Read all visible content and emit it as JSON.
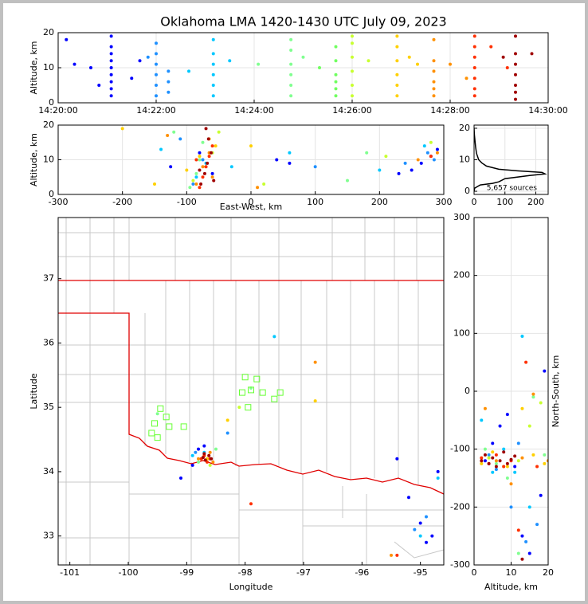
{
  "chart_data": [
    {
      "type": "scatter",
      "title": "Oklahoma LMA 1420-1430 UTC July 09, 2023",
      "ylabel": "Altitude, km",
      "grid": true,
      "xlim": [
        "14:20:00",
        "14:30:00"
      ],
      "xticks": [
        "14:20:00",
        "14:22:00",
        "14:24:00",
        "14:26:00",
        "14:28:00",
        "14:30:00"
      ],
      "ylim": [
        0,
        20
      ],
      "yticks": [
        0,
        10,
        20
      ],
      "series": [
        {
          "color": "#0000ff",
          "x": [
            "14:21:05",
            "14:21:05",
            "14:21:05",
            "14:21:05",
            "14:21:05",
            "14:21:05",
            "14:21:05",
            "14:21:05",
            "14:21:05",
            "14:20:10",
            "14:20:20",
            "14:20:40",
            "14:20:50",
            "14:21:40",
            "14:21:30"
          ],
          "y": [
            2,
            4,
            6,
            8,
            10,
            12,
            14,
            16,
            19,
            18,
            11,
            10,
            5,
            12,
            7
          ]
        },
        {
          "color": "#1e90ff",
          "x": [
            "14:22:00",
            "14:22:00",
            "14:22:00",
            "14:22:00",
            "14:22:00",
            "14:22:00",
            "14:22:15",
            "14:22:15",
            "14:22:15",
            "14:21:50"
          ],
          "y": [
            2,
            5,
            8,
            11,
            14,
            17,
            3,
            6,
            9,
            13
          ]
        },
        {
          "color": "#00c8ff",
          "x": [
            "14:23:10",
            "14:23:10",
            "14:23:10",
            "14:23:10",
            "14:23:10",
            "14:23:10",
            "14:23:30",
            "14:22:40"
          ],
          "y": [
            2,
            5,
            8,
            11,
            14,
            18,
            12,
            9
          ]
        },
        {
          "color": "#80ff90",
          "x": [
            "14:24:45",
            "14:24:45",
            "14:24:45",
            "14:24:45",
            "14:24:45",
            "14:24:45",
            "14:24:05",
            "14:25:00"
          ],
          "y": [
            2,
            5,
            8,
            11,
            15,
            18,
            11,
            13
          ]
        },
        {
          "color": "#70ff60",
          "x": [
            "14:25:40",
            "14:25:40",
            "14:25:40",
            "14:25:40",
            "14:25:40",
            "14:25:40",
            "14:25:20"
          ],
          "y": [
            2,
            4,
            6,
            8,
            12,
            16,
            10
          ]
        },
        {
          "color": "#c8ff30",
          "x": [
            "14:26:00",
            "14:26:00",
            "14:26:00",
            "14:26:00",
            "14:26:00",
            "14:26:00",
            "14:26:20"
          ],
          "y": [
            2,
            5,
            9,
            13,
            17,
            19,
            12
          ]
        },
        {
          "color": "#ffd000",
          "x": [
            "14:26:55",
            "14:26:55",
            "14:26:55",
            "14:26:55",
            "14:26:55",
            "14:26:55",
            "14:27:20",
            "14:27:10"
          ],
          "y": [
            2,
            5,
            8,
            12,
            16,
            19,
            11,
            13
          ]
        },
        {
          "color": "#ff9000",
          "x": [
            "14:27:40",
            "14:27:40",
            "14:27:40",
            "14:27:40",
            "14:27:40",
            "14:27:40",
            "14:28:00",
            "14:28:20"
          ],
          "y": [
            2,
            4,
            6,
            9,
            12,
            18,
            11,
            7
          ]
        },
        {
          "color": "#ff3000",
          "x": [
            "14:28:30",
            "14:28:30",
            "14:28:30",
            "14:28:30",
            "14:28:30",
            "14:28:30",
            "14:28:30",
            "14:28:50",
            "14:29:10"
          ],
          "y": [
            2,
            4,
            7,
            10,
            13,
            16,
            19,
            16,
            10
          ]
        },
        {
          "color": "#a00000",
          "x": [
            "14:29:20",
            "14:29:20",
            "14:29:20",
            "14:29:20",
            "14:29:20",
            "14:29:20",
            "14:29:20",
            "14:29:40",
            "14:29:05"
          ],
          "y": [
            1,
            3,
            5,
            8,
            11,
            14,
            19,
            14,
            13
          ]
        }
      ]
    },
    {
      "type": "scatter",
      "xlabel": "East-West, km",
      "ylabel": "Altitude, km",
      "grid": true,
      "xlim": [
        -300,
        300
      ],
      "xticks": [
        -300,
        -200,
        -100,
        0,
        100,
        200,
        300
      ],
      "ylim": [
        0,
        20
      ],
      "yticks": [
        0,
        10,
        20
      ],
      "series": [
        {
          "color": "#0000ff",
          "x": [
            -125,
            -80,
            -60,
            40,
            60,
            250,
            265,
            280,
            290,
            230
          ],
          "y": [
            8,
            12,
            6,
            10,
            9,
            7,
            9,
            11,
            13,
            6
          ]
        },
        {
          "color": "#1e90ff",
          "x": [
            -110,
            -90,
            -75,
            100,
            240,
            275,
            285
          ],
          "y": [
            16,
            3,
            10,
            8,
            9,
            12,
            10
          ]
        },
        {
          "color": "#00c8ff",
          "x": [
            -140,
            -85,
            -70,
            60,
            200,
            270,
            -30
          ],
          "y": [
            13,
            5,
            9,
            12,
            7,
            14,
            8
          ]
        },
        {
          "color": "#80ff90",
          "x": [
            -95,
            -85,
            -80,
            -75,
            150,
            180,
            -120
          ],
          "y": [
            2,
            6,
            10,
            15,
            4,
            12,
            18
          ]
        },
        {
          "color": "#c8ff30",
          "x": [
            -90,
            -70,
            -60,
            -50,
            210,
            280,
            20
          ],
          "y": [
            4,
            8,
            12,
            18,
            11,
            15,
            3
          ]
        },
        {
          "color": "#ffd000",
          "x": [
            -150,
            -100,
            -80,
            -65,
            -55,
            0,
            -200
          ],
          "y": [
            3,
            7,
            11,
            16,
            14,
            14,
            19
          ]
        },
        {
          "color": "#ff9000",
          "x": [
            -130,
            -85,
            -75,
            -65,
            -60,
            10,
            260,
            290
          ],
          "y": [
            17,
            3,
            8,
            12,
            5,
            2,
            10,
            12
          ]
        },
        {
          "color": "#ff3000",
          "x": [
            -80,
            -75,
            -70,
            -65,
            -60,
            -85,
            280
          ],
          "y": [
            2,
            5,
            8,
            11,
            14,
            10,
            11
          ]
        },
        {
          "color": "#a00000",
          "x": [
            -78,
            -72,
            -68,
            -62,
            -58,
            -66,
            -70,
            -80
          ],
          "y": [
            3,
            6,
            9,
            12,
            4,
            16,
            19,
            7
          ]
        }
      ]
    },
    {
      "type": "line",
      "annotation": "5,657 sources",
      "grid": true,
      "color": "#000000",
      "xlim": [
        0,
        240
      ],
      "xticks": [
        0,
        100,
        200
      ],
      "ylim": [
        -1,
        21
      ],
      "yticks": [
        0,
        10,
        20
      ],
      "x": [
        0,
        2,
        20,
        60,
        80,
        100,
        180,
        230,
        220,
        140,
        80,
        40,
        25,
        15,
        8,
        5,
        3,
        1,
        0
      ],
      "y": [
        0,
        1,
        2,
        2.5,
        3,
        4,
        5,
        5.5,
        6,
        6.5,
        7,
        8,
        9,
        10,
        12,
        14,
        16,
        18,
        20
      ]
    },
    {
      "type": "scatter",
      "xlabel": "Longitude",
      "ylabel": "Latitude",
      "grid": false,
      "xlim": [
        -101.2,
        -94.6
      ],
      "xticks": [
        -101,
        -100,
        -99,
        -98,
        -97,
        -96,
        -95
      ],
      "ylim": [
        32.55,
        37.95
      ],
      "yticks": [
        33,
        34,
        35,
        36,
        37
      ],
      "series": [
        {
          "color": "#0000ff",
          "x": [
            -98.8,
            -98.9,
            -99.1,
            -98.7,
            -95.0,
            -94.8,
            -94.9,
            -95.2,
            -94.7,
            -95.4
          ],
          "y": [
            34.35,
            34.1,
            33.9,
            34.4,
            33.2,
            33.0,
            32.9,
            33.6,
            34.0,
            34.2
          ]
        },
        {
          "color": "#1e90ff",
          "x": [
            -98.85,
            -98.6,
            -94.9,
            -95.1,
            -98.3
          ],
          "y": [
            34.3,
            34.2,
            33.3,
            33.1,
            34.6
          ]
        },
        {
          "color": "#00c8ff",
          "x": [
            -98.9,
            -98.7,
            -97.5,
            -95.0,
            -94.7
          ],
          "y": [
            34.25,
            34.3,
            36.1,
            33.0,
            33.9
          ]
        },
        {
          "color": "#80ff90",
          "x": [
            -98.8,
            -98.5,
            -97.9,
            -99.5
          ],
          "y": [
            34.15,
            34.35,
            35.3,
            34.9
          ]
        },
        {
          "color": "#c8ff30",
          "x": [
            -98.75,
            -98.6,
            -98.1
          ],
          "y": [
            34.2,
            34.1,
            35.0
          ]
        },
        {
          "color": "#ffd000",
          "x": [
            -98.7,
            -98.65,
            -98.3,
            -96.8
          ],
          "y": [
            34.25,
            34.2,
            34.8,
            35.1
          ]
        },
        {
          "color": "#ff9000",
          "x": [
            -98.8,
            -98.6,
            -98.55,
            -96.8,
            -95.5
          ],
          "y": [
            34.2,
            34.3,
            34.15,
            35.7,
            32.7
          ]
        },
        {
          "color": "#ff3000",
          "x": [
            -98.75,
            -98.7,
            -98.6,
            -98.65,
            -95.4,
            -97.9
          ],
          "y": [
            34.2,
            34.25,
            34.2,
            34.15,
            32.7,
            33.5
          ]
        },
        {
          "color": "#a00000",
          "x": [
            -98.72,
            -98.68,
            -98.62,
            -98.58,
            -98.7
          ],
          "y": [
            34.22,
            34.18,
            34.25,
            34.2,
            34.28
          ]
        },
        {
          "color": "#66ff33",
          "marker": "square",
          "x": [
            -99.55,
            -99.45,
            -99.35,
            -99.6,
            -99.5,
            -99.3,
            -99.05,
            -98.0,
            -97.8,
            -97.9,
            -97.95,
            -98.05,
            -97.7,
            -97.5,
            -97.4
          ],
          "y": [
            34.75,
            34.98,
            34.85,
            34.6,
            34.53,
            34.7,
            34.7,
            35.47,
            35.44,
            35.27,
            35.0,
            35.23,
            35.23,
            35.13,
            35.23
          ]
        }
      ]
    },
    {
      "type": "scatter",
      "xlabel": "Altitude, km",
      "ylabel": "North-South, km",
      "grid": true,
      "xlim": [
        0,
        20
      ],
      "xticks": [
        0,
        10,
        20
      ],
      "ylim": [
        -300,
        300
      ],
      "yticks": [
        -300,
        -200,
        -100,
        0,
        100,
        200,
        300
      ],
      "series": [
        {
          "color": "#0000ff",
          "x": [
            3,
            5,
            7,
            9,
            11,
            13,
            15,
            18,
            19
          ],
          "y": [
            -120,
            -90,
            -60,
            -40,
            -130,
            -250,
            -280,
            -180,
            35
          ]
        },
        {
          "color": "#1e90ff",
          "x": [
            4,
            6,
            10,
            12,
            14,
            17
          ],
          "y": [
            -110,
            -135,
            -200,
            -90,
            -260,
            -230
          ]
        },
        {
          "color": "#00c8ff",
          "x": [
            2,
            5,
            8,
            11,
            13,
            15
          ],
          "y": [
            -50,
            -140,
            -100,
            -140,
            95,
            -200
          ]
        },
        {
          "color": "#80ff90",
          "x": [
            3,
            6,
            9,
            12,
            16,
            19
          ],
          "y": [
            -100,
            -125,
            -150,
            -280,
            -10,
            -110
          ]
        },
        {
          "color": "#c8ff30",
          "x": [
            4,
            8,
            12,
            15,
            18
          ],
          "y": [
            -115,
            -130,
            -120,
            -60,
            -20
          ]
        },
        {
          "color": "#ffd000",
          "x": [
            2,
            5,
            9,
            13,
            16,
            19
          ],
          "y": [
            -125,
            -105,
            -130,
            -30,
            -110,
            -125
          ]
        },
        {
          "color": "#ff9000",
          "x": [
            3,
            6,
            10,
            13,
            16,
            20
          ],
          "y": [
            -30,
            -120,
            -160,
            -115,
            -5,
            -120
          ]
        },
        {
          "color": "#ff3000",
          "x": [
            2,
            4,
            6,
            8,
            10,
            12,
            14,
            17
          ],
          "y": [
            -115,
            -125,
            -110,
            -130,
            -120,
            -240,
            50,
            -130
          ]
        },
        {
          "color": "#a00000",
          "x": [
            2,
            3,
            4,
            5,
            6,
            7,
            8,
            9,
            10,
            11,
            13
          ],
          "y": [
            -120,
            -110,
            -125,
            -115,
            -130,
            -120,
            -105,
            -125,
            -118,
            -112,
            -290
          ]
        }
      ]
    }
  ]
}
